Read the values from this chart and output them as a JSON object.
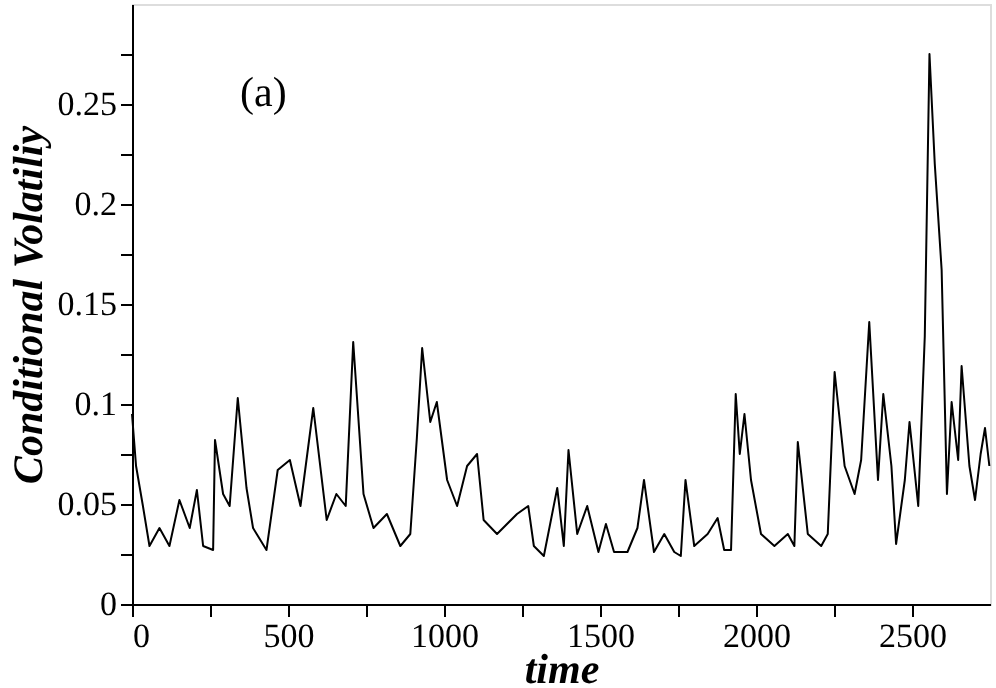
{
  "chart_data": {
    "type": "line",
    "xlabel": "time",
    "ylabel": "Conditional Volatiliy",
    "annotations": [
      "(a)"
    ],
    "xlim": [
      0,
      2750
    ],
    "ylim": [
      0,
      0.3
    ],
    "xticks": [
      0,
      {
        "value": 250,
        "label": null
      },
      500,
      {
        "value": 750,
        "label": null
      },
      1000,
      {
        "value": 1250,
        "label": null
      },
      1500,
      {
        "value": 1750,
        "label": null
      },
      2000,
      {
        "value": 2250,
        "label": null
      },
      2500
    ],
    "yticks": [
      0,
      {
        "value": 0.025,
        "label": null
      },
      0.05,
      {
        "value": 0.075,
        "label": null
      },
      0.1,
      {
        "value": 0.125,
        "label": null
      },
      0.15,
      {
        "value": 0.175,
        "label": null
      },
      0.2,
      {
        "value": 0.225,
        "label": null
      },
      0.25,
      {
        "value": 0.275,
        "label": null
      }
    ],
    "grid": false,
    "marker": "none",
    "line_style": "solid",
    "series": [
      {
        "color": "#000000",
        "x": [
          0,
          13,
          35,
          56,
          88,
          120,
          152,
          185,
          208,
          228,
          260,
          266,
          292,
          313,
          339,
          367,
          388,
          431,
          467,
          506,
          540,
          581,
          624,
          655,
          685,
          709,
          742,
          774,
          817,
          860,
          892,
          913,
          930,
          956,
          977,
          1010,
          1042,
          1074,
          1106,
          1127,
          1170,
          1234,
          1270,
          1288,
          1320,
          1363,
          1384,
          1399,
          1427,
          1459,
          1495,
          1519,
          1545,
          1588,
          1620,
          1641,
          1673,
          1706,
          1738,
          1759,
          1774,
          1802,
          1845,
          1877,
          1898,
          1920,
          1935,
          1948,
          1963,
          1984,
          2016,
          2059,
          2102,
          2123,
          2134,
          2166,
          2209,
          2230,
          2252,
          2284,
          2316,
          2337,
          2363,
          2391,
          2408,
          2434,
          2449,
          2477,
          2492,
          2520,
          2541,
          2556,
          2573,
          2595,
          2612,
          2627,
          2648,
          2659,
          2684,
          2702,
          2720,
          2734,
          2748
        ],
        "values": [
          0.095,
          0.069,
          0.049,
          0.029,
          0.038,
          0.029,
          0.052,
          0.038,
          0.057,
          0.029,
          0.027,
          0.082,
          0.055,
          0.049,
          0.103,
          0.058,
          0.038,
          0.027,
          0.067,
          0.072,
          0.049,
          0.098,
          0.042,
          0.055,
          0.049,
          0.131,
          0.055,
          0.038,
          0.045,
          0.029,
          0.035,
          0.083,
          0.128,
          0.091,
          0.101,
          0.062,
          0.049,
          0.069,
          0.075,
          0.042,
          0.035,
          0.045,
          0.049,
          0.029,
          0.024,
          0.058,
          0.029,
          0.077,
          0.035,
          0.049,
          0.026,
          0.04,
          0.026,
          0.026,
          0.038,
          0.062,
          0.026,
          0.035,
          0.026,
          0.024,
          0.062,
          0.029,
          0.035,
          0.043,
          0.027,
          0.027,
          0.105,
          0.075,
          0.095,
          0.062,
          0.035,
          0.029,
          0.035,
          0.029,
          0.081,
          0.035,
          0.029,
          0.035,
          0.116,
          0.069,
          0.055,
          0.072,
          0.141,
          0.062,
          0.105,
          0.069,
          0.03,
          0.062,
          0.091,
          0.049,
          0.134,
          0.275,
          0.22,
          0.167,
          0.055,
          0.101,
          0.072,
          0.119,
          0.069,
          0.052,
          0.075,
          0.088,
          0.069
        ]
      }
    ]
  }
}
